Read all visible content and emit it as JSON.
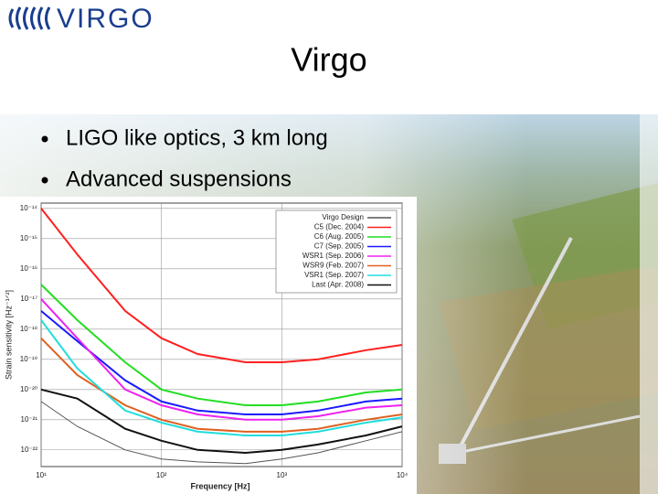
{
  "logo": "VIRGO",
  "title": "Virgo",
  "bullets": [
    "LIGO like optics, 3 km long",
    "Advanced suspensions"
  ],
  "chart_data": {
    "type": "line",
    "x_label": "Frequency [Hz]",
    "y_label": "Strain sensitivity [Hz⁻¹ᐟ²]",
    "x_log": true,
    "y_log": true,
    "grid": true,
    "legend": "upper right",
    "xlim": [
      10,
      10000
    ],
    "ylim": [
      2.8e-23,
      1.5e-14
    ],
    "xticks": [
      {
        "value": 10,
        "label": "10¹"
      },
      {
        "value": 100,
        "label": "10²"
      },
      {
        "value": 1000,
        "label": "10³"
      },
      {
        "value": 10000,
        "label": "10⁴"
      }
    ],
    "yticks": [
      {
        "value": 1e-14,
        "label": "10⁻¹⁴"
      },
      {
        "value": 1e-15,
        "label": "10⁻¹⁵"
      },
      {
        "value": 1e-16,
        "label": "10⁻¹⁶"
      },
      {
        "value": 1e-17,
        "label": "10⁻¹⁷"
      },
      {
        "value": 1e-18,
        "label": "10⁻¹⁸"
      },
      {
        "value": 1e-19,
        "label": "10⁻¹⁹"
      },
      {
        "value": 1e-20,
        "label": "10⁻²⁰"
      },
      {
        "value": 1e-21,
        "label": "10⁻²¹"
      },
      {
        "value": 1e-22,
        "label": "10⁻²²"
      }
    ],
    "x": [
      10,
      20,
      50,
      100,
      200,
      500,
      1000,
      2000,
      5000,
      10000
    ],
    "series": [
      {
        "name": "Virgo Design",
        "color": "#555555",
        "values": [
          4e-21,
          6e-22,
          1e-22,
          5e-23,
          4e-23,
          3.5e-23,
          5e-23,
          8e-23,
          2e-22,
          4e-22
        ]
      },
      {
        "name": "C5 (Dec. 2004)",
        "color": "#ff2020",
        "values": [
          1e-14,
          3e-16,
          4e-18,
          5e-19,
          1.5e-19,
          8e-20,
          8e-20,
          1e-19,
          2e-19,
          3e-19
        ]
      },
      {
        "name": "C6 (Aug. 2005)",
        "color": "#22dd22",
        "values": [
          3e-17,
          2e-18,
          8e-20,
          1e-20,
          5e-21,
          3e-21,
          3e-21,
          4e-21,
          8e-21,
          1e-20
        ]
      },
      {
        "name": "C7 (Sep. 2005)",
        "color": "#1a1aff",
        "values": [
          4e-18,
          4e-19,
          2e-20,
          4e-21,
          2e-21,
          1.5e-21,
          1.5e-21,
          2e-21,
          4e-21,
          5e-21
        ]
      },
      {
        "name": "WSR1 (Sep. 2006)",
        "color": "#ee22ee",
        "values": [
          1e-17,
          5e-19,
          1e-20,
          3e-21,
          1.5e-21,
          1e-21,
          1e-21,
          1.3e-21,
          2.5e-21,
          3e-21
        ]
      },
      {
        "name": "WSR9 (Feb. 2007)",
        "color": "#e06020",
        "values": [
          5e-19,
          3e-20,
          3e-21,
          1e-21,
          5e-22,
          4e-22,
          4e-22,
          5e-22,
          1e-21,
          1.5e-21
        ]
      },
      {
        "name": "VSR1 (Sep. 2007)",
        "color": "#22dddd",
        "values": [
          2e-18,
          5e-20,
          2e-21,
          8e-22,
          4e-22,
          3e-22,
          3e-22,
          4e-22,
          8e-22,
          1.2e-21
        ]
      },
      {
        "name": "Last (Apr. 2008)",
        "color": "#111111",
        "values": [
          1e-20,
          5e-21,
          5e-22,
          2e-22,
          1e-22,
          8e-23,
          1e-22,
          1.5e-22,
          3e-22,
          6e-22
        ]
      }
    ]
  }
}
